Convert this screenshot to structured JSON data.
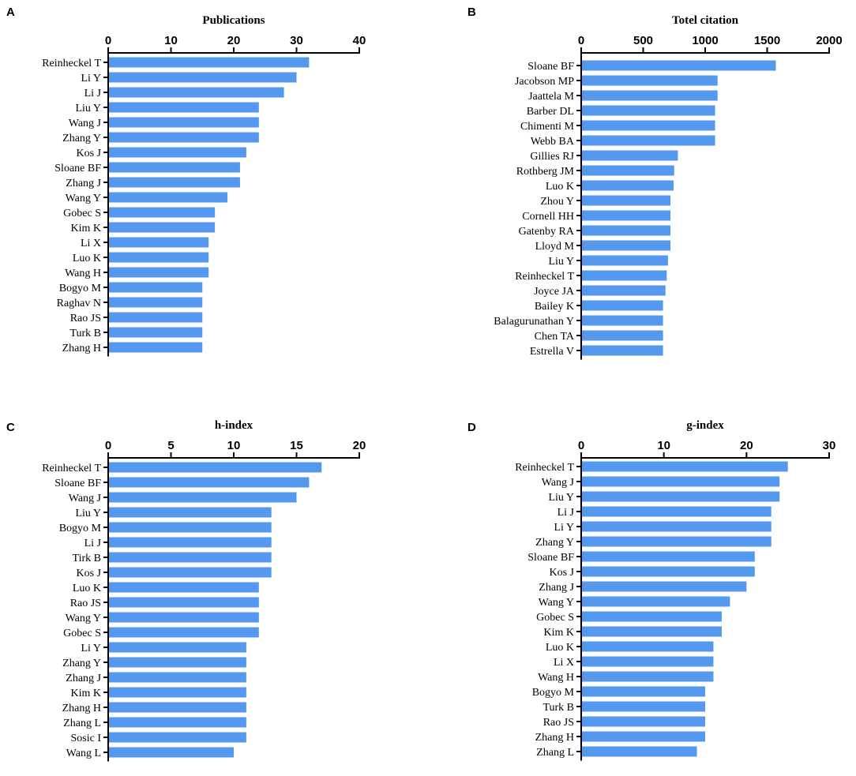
{
  "colors": {
    "bar": "#5599EE",
    "axis": "#000000"
  },
  "chart_data": [
    {
      "panel": "A",
      "type": "bar",
      "orientation": "horizontal",
      "title": "Publications",
      "xlim": [
        0,
        40
      ],
      "ticks": [
        0,
        10,
        20,
        30,
        40
      ],
      "categories": [
        "Reinheckel T",
        "Li Y",
        "Li J",
        "Liu Y",
        "Wang J",
        "Zhang Y",
        "Kos J",
        "Sloane BF",
        "Zhang J",
        "Wang Y",
        "Gobec S",
        "Kim K",
        "Li X",
        "Luo K",
        "Wang H",
        "Bogyo M",
        "Raghav N",
        "Rao JS",
        "Turk B",
        "Zhang H"
      ],
      "values": [
        32,
        30,
        28,
        24,
        24,
        24,
        22,
        21,
        21,
        19,
        17,
        17,
        16,
        16,
        16,
        15,
        15,
        15,
        15,
        15
      ]
    },
    {
      "panel": "B",
      "type": "bar",
      "orientation": "horizontal",
      "title": "Totel citation",
      "xlim": [
        0,
        2000
      ],
      "ticks": [
        0,
        500,
        1000,
        1500,
        2000
      ],
      "categories": [
        "Sloane BF",
        "Jacobson MP",
        "Jaattela M",
        "Barber DL",
        "Chimenti M",
        "Webb BA",
        "Gillies RJ",
        "Rothberg JM",
        "Luo K",
        "Zhou Y",
        "Cornell HH",
        "Gatenby RA",
        "Lloyd M",
        "Liu Y",
        "Reinheckel T",
        "Joyce JA",
        "Bailey K",
        "Balagurunathan Y",
        "Chen TA",
        "Estrella V"
      ],
      "values": [
        1570,
        1100,
        1100,
        1080,
        1080,
        1080,
        780,
        750,
        745,
        720,
        720,
        720,
        720,
        700,
        690,
        680,
        660,
        660,
        660,
        660
      ]
    },
    {
      "panel": "C",
      "type": "bar",
      "orientation": "horizontal",
      "title": "h-index",
      "xlim": [
        0,
        20
      ],
      "ticks": [
        0,
        5,
        10,
        15,
        20
      ],
      "categories": [
        "Reinheckel T",
        "Sloane BF",
        "Wang J",
        "Liu Y",
        "Bogyo M",
        "Li J",
        "Tirk B",
        "Kos J",
        "Luo K",
        "Rao JS",
        "Wang Y",
        "Gobec S",
        "Li Y",
        "Zhang Y",
        "Zhang J",
        "Kim K",
        "Zhang H",
        "Zhang L",
        "Sosic I",
        "Wang L"
      ],
      "values": [
        17,
        16,
        15,
        13,
        13,
        13,
        13,
        13,
        12,
        12,
        12,
        12,
        11,
        11,
        11,
        11,
        11,
        11,
        11,
        10
      ]
    },
    {
      "panel": "D",
      "type": "bar",
      "orientation": "horizontal",
      "title": "g-index",
      "xlim": [
        0,
        30
      ],
      "ticks": [
        0,
        10,
        20,
        30
      ],
      "categories": [
        "Reinheckel T",
        "Wang J",
        "Liu Y",
        "Li J",
        "Li Y",
        "Zhang Y",
        "Sloane BF",
        "Kos J",
        "Zhang J",
        "Wang Y",
        "Gobec S",
        "Kim K",
        "Luo K",
        "Li X",
        "Wang H",
        "Bogyo M",
        "Turk B",
        "Rao JS",
        "Zhang H",
        "Zhang L"
      ],
      "values": [
        25,
        24,
        24,
        23,
        23,
        23,
        21,
        21,
        20,
        18,
        17,
        17,
        16,
        16,
        16,
        15,
        15,
        15,
        15,
        14
      ]
    }
  ]
}
